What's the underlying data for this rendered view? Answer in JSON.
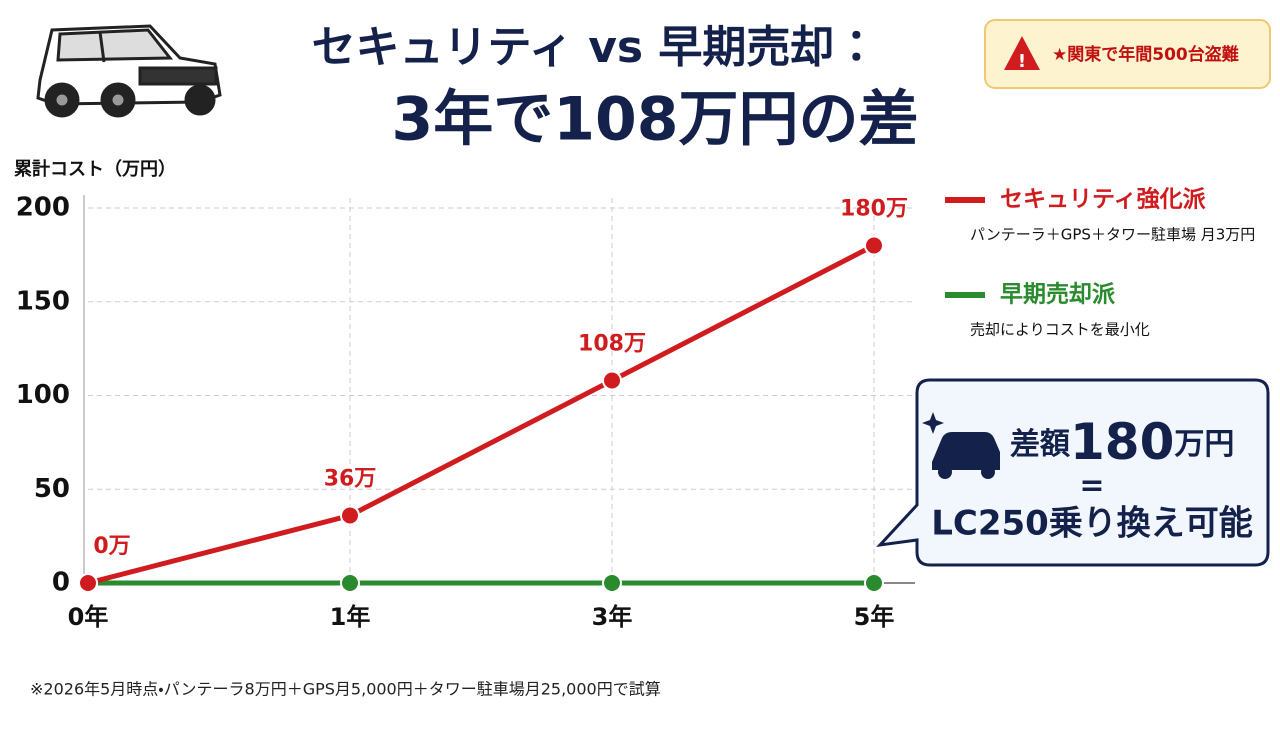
{
  "chart_data": {
    "type": "line",
    "title": "セキュリティ vs 早期売却：",
    "subtitle": "3年で108万円の差",
    "y_label": "累計コスト（万円）",
    "badge": "★関東で年間500台盗難",
    "categories": [
      "0年",
      "1年",
      "3年",
      "5年"
    ],
    "series": [
      {
        "name": "セキュリティ強化派",
        "description": "パンテーラ＋GPS＋タワー駐車場 月3万円",
        "color": "#d01c1f",
        "values": [
          0,
          36,
          108,
          180
        ],
        "value_labels": [
          "0万",
          "36万",
          "108万",
          "180万"
        ]
      },
      {
        "name": "早期売却派",
        "description": "売却によりコストを最小化",
        "color": "#2a8a2e",
        "values": [
          0,
          0,
          0,
          0
        ]
      }
    ],
    "ylim": [
      0,
      200
    ],
    "yticks": [
      0,
      50,
      100,
      150,
      200
    ],
    "grid": true,
    "callout": {
      "label": "差額",
      "amount": "180",
      "unit": "万円",
      "equals": "=",
      "result": "LC250乗り換え可能"
    },
    "footnote": "※2026年5月時点・パンテーラ8万円＋GPS月5,000円＋タワー駐車場月25,000円で試算"
  }
}
